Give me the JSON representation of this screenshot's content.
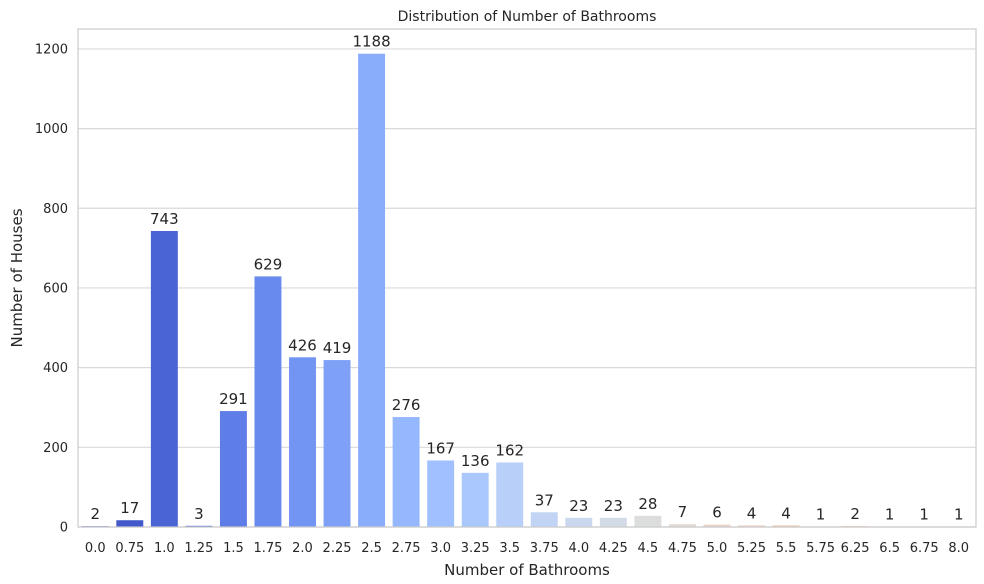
{
  "chart_data": {
    "type": "bar",
    "title": "Distribution of Number of Bathrooms",
    "xlabel": "Number of Bathrooms",
    "ylabel": "Number of Houses",
    "categories": [
      "0.0",
      "0.75",
      "1.0",
      "1.25",
      "1.5",
      "1.75",
      "2.0",
      "2.25",
      "2.5",
      "2.75",
      "3.0",
      "3.25",
      "3.5",
      "3.75",
      "4.0",
      "4.25",
      "4.5",
      "4.75",
      "5.0",
      "5.25",
      "5.5",
      "5.75",
      "6.25",
      "6.5",
      "6.75",
      "8.0"
    ],
    "values": [
      2,
      17,
      743,
      3,
      291,
      629,
      426,
      419,
      1188,
      276,
      167,
      136,
      162,
      37,
      23,
      23,
      28,
      7,
      6,
      4,
      4,
      1,
      2,
      1,
      1,
      1
    ],
    "data_labels": [
      "2",
      "17",
      "743",
      "3",
      "291",
      "629",
      "426",
      "419",
      "1188",
      "276",
      "167",
      "136",
      "162",
      "37",
      "23",
      "23",
      "28",
      "7",
      "6",
      "4",
      "4",
      "1",
      "2",
      "1",
      "1",
      "1"
    ],
    "colors": [
      "#3b4cc0",
      "#4358cb",
      "#4b64d5",
      "#5570df",
      "#5e7de7",
      "#6889ee",
      "#7295f4",
      "#7ea0f7",
      "#89acfb",
      "#95b7fe",
      "#a0c0ff",
      "#abc8fd",
      "#b7cff9",
      "#c1d4f4",
      "#cad8ef",
      "#d3dbe7",
      "#dcdddd",
      "#e3d9d3",
      "#e9d4c9",
      "#eecebe",
      "#f2c7b4",
      "#f4bfa6",
      "#f6b79a",
      "#f7ae8e",
      "#f6a383",
      "#f59a78"
    ],
    "yticks": [
      0,
      200,
      400,
      600,
      800,
      1000,
      1200
    ],
    "ytick_labels": [
      "0",
      "200",
      "400",
      "600",
      "800",
      "1000",
      "1200"
    ],
    "ylim": [
      0,
      1250
    ],
    "grid": "horizontal"
  }
}
